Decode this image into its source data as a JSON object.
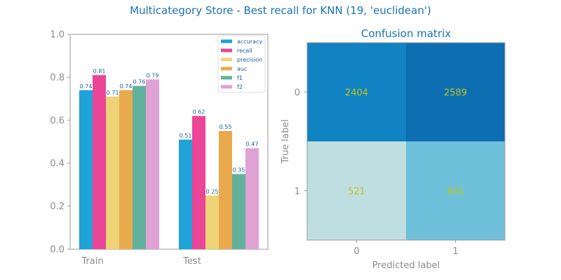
{
  "figure": {
    "title": "Multicategory Store - Best recall for KNN (19, 'euclidean')"
  },
  "chart_data": [
    {
      "type": "bar",
      "title": "",
      "xlabel": "",
      "ylabel": "",
      "categories": [
        "Train",
        "Test"
      ],
      "ylim": [
        0,
        1.0
      ],
      "yticks": [
        "0.0",
        "0.2",
        "0.4",
        "0.6",
        "0.8",
        "1.0"
      ],
      "grid": false,
      "legend_position": "top-right",
      "series": [
        {
          "name": "accuracy",
          "color": "#1ea2d8",
          "values": [
            0.74,
            0.51
          ],
          "labels": [
            "0.74",
            "0.51"
          ]
        },
        {
          "name": "recall",
          "color": "#ea4596",
          "values": [
            0.81,
            0.62
          ],
          "labels": [
            "0.81",
            "0.62"
          ]
        },
        {
          "name": "precision",
          "color": "#eed377",
          "values": [
            0.71,
            0.25
          ],
          "labels": [
            "0.71",
            "0.25"
          ]
        },
        {
          "name": "auc",
          "color": "#e8aa4c",
          "values": [
            0.74,
            0.55
          ],
          "labels": [
            "0.74",
            "0.55"
          ]
        },
        {
          "name": "f1",
          "color": "#62b19c",
          "values": [
            0.76,
            0.35
          ],
          "labels": [
            "0.76",
            "0.35"
          ]
        },
        {
          "name": "f2",
          "color": "#e0a1d4",
          "values": [
            0.79,
            0.47
          ],
          "labels": [
            "0.79",
            "0.47"
          ]
        }
      ]
    },
    {
      "type": "heatmap",
      "title": "Confusion matrix",
      "xlabel": "Predicted label",
      "ylabel": "True label",
      "x_categories": [
        "0",
        "1"
      ],
      "y_categories": [
        "0",
        "1"
      ],
      "values": [
        [
          2404,
          2589
        ],
        [
          521,
          841
        ]
      ],
      "cell_colors": [
        [
          "#1283c2",
          "#0d6eb2"
        ],
        [
          "#bfdee2",
          "#6fc0da"
        ]
      ],
      "text_color": "#c2c21a"
    }
  ]
}
